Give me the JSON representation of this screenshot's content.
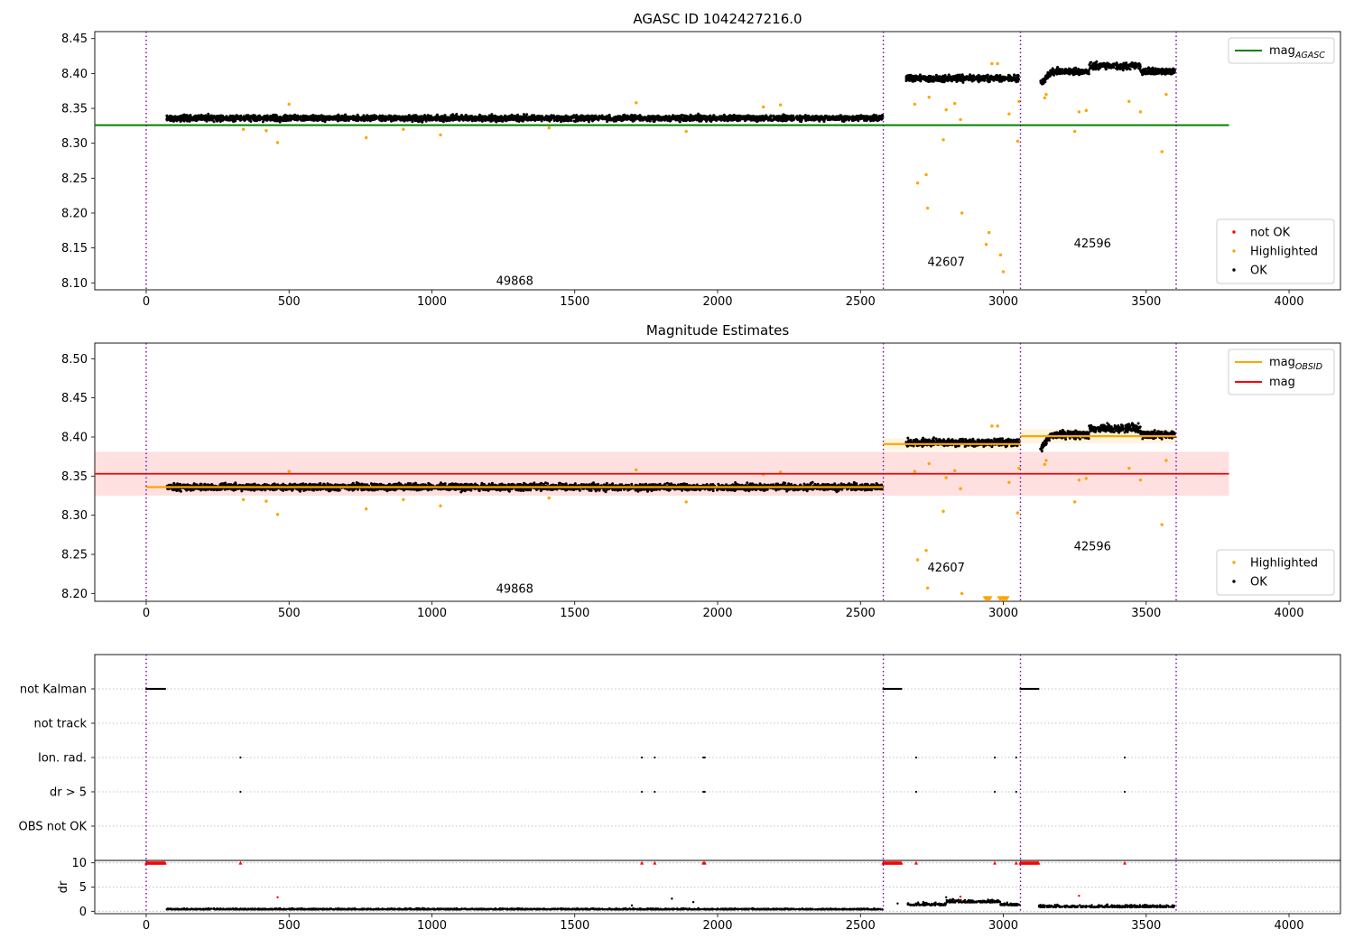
{
  "chart_data": [
    {
      "type": "scatter",
      "title": "AGASC ID 1042427216.0",
      "xlim": [
        -180,
        4180
      ],
      "ylim": [
        8.09,
        8.46
      ],
      "xticks": [
        0,
        500,
        1000,
        1500,
        2000,
        2500,
        3000,
        3500,
        4000
      ],
      "yticks": [
        8.1,
        8.15,
        8.2,
        8.25,
        8.3,
        8.35,
        8.4,
        8.45
      ],
      "grid": false,
      "obsid_boundaries": [
        0,
        2580,
        3060,
        3605
      ],
      "obsid_labels": [
        {
          "text": "49868",
          "x": 1290,
          "y": 8.097
        },
        {
          "text": "42607",
          "x": 2800,
          "y": 8.124
        },
        {
          "text": "42596",
          "x": 3312,
          "y": 8.151
        }
      ],
      "lines": [
        {
          "name": "mag",
          "subscript": "AGASC",
          "color": "#008000",
          "x": [
            -180,
            3790
          ],
          "y": [
            8.326,
            8.326
          ]
        }
      ],
      "legend_lines_location": "upper right",
      "legend_points_location": "lower right",
      "legend_points": [
        {
          "name": "not OK",
          "color": "#ff0000"
        },
        {
          "name": "Highlighted",
          "color": "#ffa500"
        },
        {
          "name": "OK",
          "color": "#000000"
        }
      ],
      "series": [
        {
          "name": "OK",
          "color": "#000000",
          "segments": [
            {
              "x0": 72,
              "x1": 2578,
              "level": 8.336,
              "scatter": 0.008
            },
            {
              "x0": 2660,
              "x1": 3055,
              "level": 8.393,
              "scatter": 0.009
            },
            {
              "x0": 3130,
              "x1": 3600,
              "level": 8.403,
              "scatter": 0.009
            }
          ]
        },
        {
          "name": "Highlighted",
          "color": "#ffa500",
          "points": [
            [
              340,
              8.32
            ],
            [
              420,
              8.318
            ],
            [
              460,
              8.301
            ],
            [
              500,
              8.356
            ],
            [
              770,
              8.308
            ],
            [
              900,
              8.32
            ],
            [
              1030,
              8.312
            ],
            [
              1410,
              8.322
            ],
            [
              1715,
              8.358
            ],
            [
              1890,
              8.317
            ],
            [
              2160,
              8.352
            ],
            [
              2220,
              8.355
            ],
            [
              2690,
              8.356
            ],
            [
              2700,
              8.243
            ],
            [
              2730,
              8.255
            ],
            [
              2735,
              8.207
            ],
            [
              2740,
              8.366
            ],
            [
              2790,
              8.305
            ],
            [
              2800,
              8.348
            ],
            [
              2830,
              8.357
            ],
            [
              2850,
              8.334
            ],
            [
              2855,
              8.2
            ],
            [
              2940,
              8.155
            ],
            [
              2950,
              8.172
            ],
            [
              2960,
              8.414
            ],
            [
              2980,
              8.414
            ],
            [
              2990,
              8.14
            ],
            [
              3000,
              8.116
            ],
            [
              3020,
              8.342
            ],
            [
              3050,
              8.303
            ],
            [
              3055,
              8.36
            ],
            [
              3145,
              8.365
            ],
            [
              3150,
              8.37
            ],
            [
              3250,
              8.317
            ],
            [
              3265,
              8.345
            ],
            [
              3290,
              8.347
            ],
            [
              3440,
              8.36
            ],
            [
              3480,
              8.345
            ],
            [
              3555,
              8.288
            ],
            [
              3570,
              8.37
            ]
          ]
        }
      ]
    },
    {
      "type": "scatter",
      "title": "Magnitude Estimates",
      "xlim": [
        -180,
        4180
      ],
      "ylim": [
        8.19,
        8.52
      ],
      "xticks": [
        0,
        500,
        1000,
        1500,
        2000,
        2500,
        3000,
        3500,
        4000
      ],
      "yticks": [
        8.2,
        8.25,
        8.3,
        8.35,
        8.4,
        8.45,
        8.5
      ],
      "grid": false,
      "obsid_boundaries": [
        0,
        2580,
        3060,
        3605
      ],
      "obsid_labels": [
        {
          "text": "49868",
          "x": 1290,
          "y": 8.201
        },
        {
          "text": "42607",
          "x": 2800,
          "y": 8.228
        },
        {
          "text": "42596",
          "x": 3312,
          "y": 8.255
        }
      ],
      "bands": [
        {
          "name": "mag",
          "color": "#ff0000",
          "x": [
            -180,
            3790
          ],
          "y": [
            8.325,
            8.381
          ]
        },
        {
          "name": "mag OBSID 42607",
          "color": "#ffa500",
          "x": [
            2580,
            3060
          ],
          "y": [
            8.383,
            8.398
          ]
        },
        {
          "name": "mag OBSID 42596",
          "color": "#ffa500",
          "x": [
            3060,
            3605
          ],
          "y": [
            8.392,
            8.41
          ]
        }
      ],
      "lines": [
        {
          "name": "mag",
          "subscript": "OBSID",
          "color": "#ffa500",
          "steps": [
            {
              "x0": 0,
              "x1": 2580,
              "y": 8.336
            },
            {
              "x0": 2580,
              "x1": 3060,
              "y": 8.391
            },
            {
              "x0": 3060,
              "x1": 3605,
              "y": 8.401
            }
          ]
        },
        {
          "name": "mag",
          "subscript": "",
          "color": "#ff0000",
          "x": [
            -180,
            3790
          ],
          "y": [
            8.353,
            8.353
          ]
        }
      ],
      "legend_lines_location": "upper right",
      "legend_points_location": "lower right",
      "legend_points": [
        {
          "name": "Highlighted",
          "color": "#ffa500"
        },
        {
          "name": "OK",
          "color": "#000000"
        }
      ],
      "series": [
        {
          "name": "OK",
          "color": "#000000",
          "segments": [
            {
              "x0": 72,
              "x1": 2578,
              "level": 8.336,
              "scatter": 0.008
            },
            {
              "x0": 2660,
              "x1": 3055,
              "level": 8.393,
              "scatter": 0.009
            },
            {
              "x0": 3130,
              "x1": 3600,
              "level": 8.403,
              "scatter": 0.009
            }
          ]
        },
        {
          "name": "Highlighted",
          "color": "#ffa500",
          "points": [
            [
              340,
              8.32
            ],
            [
              420,
              8.318
            ],
            [
              460,
              8.301
            ],
            [
              500,
              8.356
            ],
            [
              770,
              8.308
            ],
            [
              900,
              8.32
            ],
            [
              1030,
              8.312
            ],
            [
              1410,
              8.322
            ],
            [
              1715,
              8.358
            ],
            [
              1890,
              8.317
            ],
            [
              2160,
              8.352
            ],
            [
              2220,
              8.355
            ],
            [
              2690,
              8.356
            ],
            [
              2700,
              8.243
            ],
            [
              2730,
              8.255
            ],
            [
              2735,
              8.207
            ],
            [
              2740,
              8.366
            ],
            [
              2790,
              8.305
            ],
            [
              2800,
              8.348
            ],
            [
              2830,
              8.357
            ],
            [
              2850,
              8.334
            ],
            [
              2855,
              8.2
            ],
            [
              2960,
              8.414
            ],
            [
              2980,
              8.414
            ],
            [
              3020,
              8.342
            ],
            [
              3050,
              8.303
            ],
            [
              3055,
              8.36
            ],
            [
              3145,
              8.365
            ],
            [
              3150,
              8.37
            ],
            [
              3250,
              8.317
            ],
            [
              3265,
              8.345
            ],
            [
              3290,
              8.347
            ],
            [
              3440,
              8.36
            ],
            [
              3480,
              8.345
            ],
            [
              3555,
              8.288
            ],
            [
              3570,
              8.37
            ]
          ]
        },
        {
          "name": "Highlighted (below axis)",
          "color": "#ffa500",
          "marker": "triangle-down",
          "points": [
            [
              2940,
              8.193
            ],
            [
              2950,
              8.193
            ],
            [
              2990,
              8.193
            ],
            [
              3000,
              8.193
            ],
            [
              3010,
              8.193
            ]
          ]
        }
      ]
    },
    {
      "type": "scatter",
      "title": "",
      "xlim": [
        -180,
        4180
      ],
      "xticks": [
        0,
        500,
        1000,
        1500,
        2000,
        2500,
        3000,
        3500,
        4000
      ],
      "obsid_boundaries": [
        0,
        2580,
        3060,
        3605
      ],
      "flag_categories": [
        "not Kalman",
        "not track",
        "Ion. rad.",
        "dr > 5",
        "OBS not OK"
      ],
      "flags": [
        {
          "category": "not Kalman",
          "ranges": [
            [
              0,
              68
            ],
            [
              2580,
              2645
            ],
            [
              3060,
              3125
            ]
          ],
          "points": []
        },
        {
          "category": "not track",
          "ranges": [],
          "points": []
        },
        {
          "category": "Ion. rad.",
          "ranges": [],
          "points": [
            330,
            1735,
            1780,
            1950,
            1955,
            2695,
            2970,
            3045,
            3425
          ]
        },
        {
          "category": "dr > 5",
          "ranges": [],
          "points": [
            330,
            1735,
            1780,
            1950,
            1955,
            2695,
            2970,
            3045,
            3425
          ]
        },
        {
          "category": "OBS not OK",
          "ranges": [],
          "points": []
        }
      ],
      "dr": {
        "ylabel": "dr",
        "ylim": [
          -0.5,
          10.5
        ],
        "yticks": [
          0,
          5,
          10
        ],
        "segments": [
          {
            "x0": 72,
            "x1": 2578,
            "level": 0.35,
            "scatter": 0.2
          },
          {
            "x0": 2665,
            "x1": 3058,
            "level": 1.2,
            "scatter": 0.5
          },
          {
            "x0": 3125,
            "x1": 3600,
            "level": 0.8,
            "scatter": 0.45
          }
        ],
        "outliers": [
          [
            460,
            2.9
          ],
          [
            1840,
            2.6
          ],
          [
            1915,
            1.9
          ],
          [
            1700,
            1.2
          ],
          [
            2800,
            2.9
          ],
          [
            2850,
            3.0
          ],
          [
            3265,
            3.2
          ],
          [
            2630,
            1.6
          ],
          [
            2720,
            1.9
          ]
        ],
        "capped": {
          "value": 10,
          "color": "#ff0000",
          "ranges": [
            [
              0,
              68
            ],
            [
              2580,
              2645
            ],
            [
              3060,
              3125
            ]
          ],
          "points": [
            330,
            1735,
            1780,
            1950,
            1955,
            2695,
            2970,
            3045,
            3425
          ]
        }
      }
    }
  ]
}
